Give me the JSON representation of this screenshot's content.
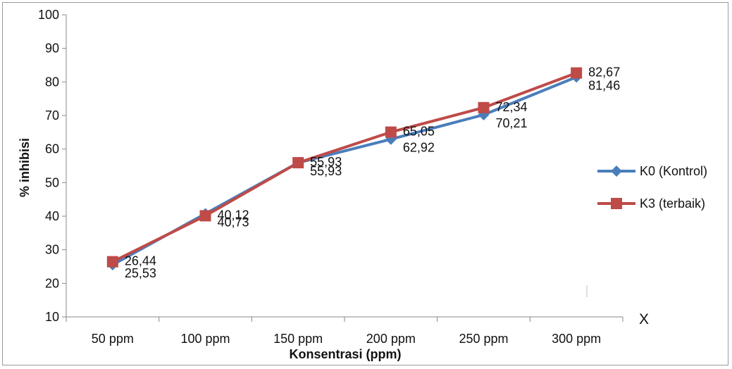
{
  "chart_data": {
    "type": "line",
    "title": "",
    "xlabel": "Konsentrasi (ppm)",
    "ylabel": "% inhibisi",
    "ylim": [
      10,
      100
    ],
    "yticks": [
      10,
      20,
      30,
      40,
      50,
      60,
      70,
      80,
      90,
      100
    ],
    "categories": [
      "50 ppm",
      "100 ppm",
      "150 ppm",
      "200 ppm",
      "250 ppm",
      "300 ppm"
    ],
    "grid": false,
    "legend_position": "right",
    "series": [
      {
        "name": "K0 (Kontrol)",
        "color": "#4a7ebb",
        "marker": "diamond",
        "values": [
          25.53,
          40.73,
          55.93,
          62.92,
          70.21,
          81.46
        ],
        "labels": [
          "25,53",
          "40,73",
          "55,93",
          "62,92",
          "70,21",
          "81,46"
        ]
      },
      {
        "name": "K3 (terbaik)",
        "color": "#be4b48",
        "marker": "square",
        "values": [
          26.44,
          40.12,
          55.93,
          65.05,
          72.34,
          82.67
        ],
        "labels": [
          "26,44",
          "40,12",
          "55,93",
          "65,05",
          "72,34",
          "82,67"
        ]
      }
    ],
    "annotation": "X"
  }
}
